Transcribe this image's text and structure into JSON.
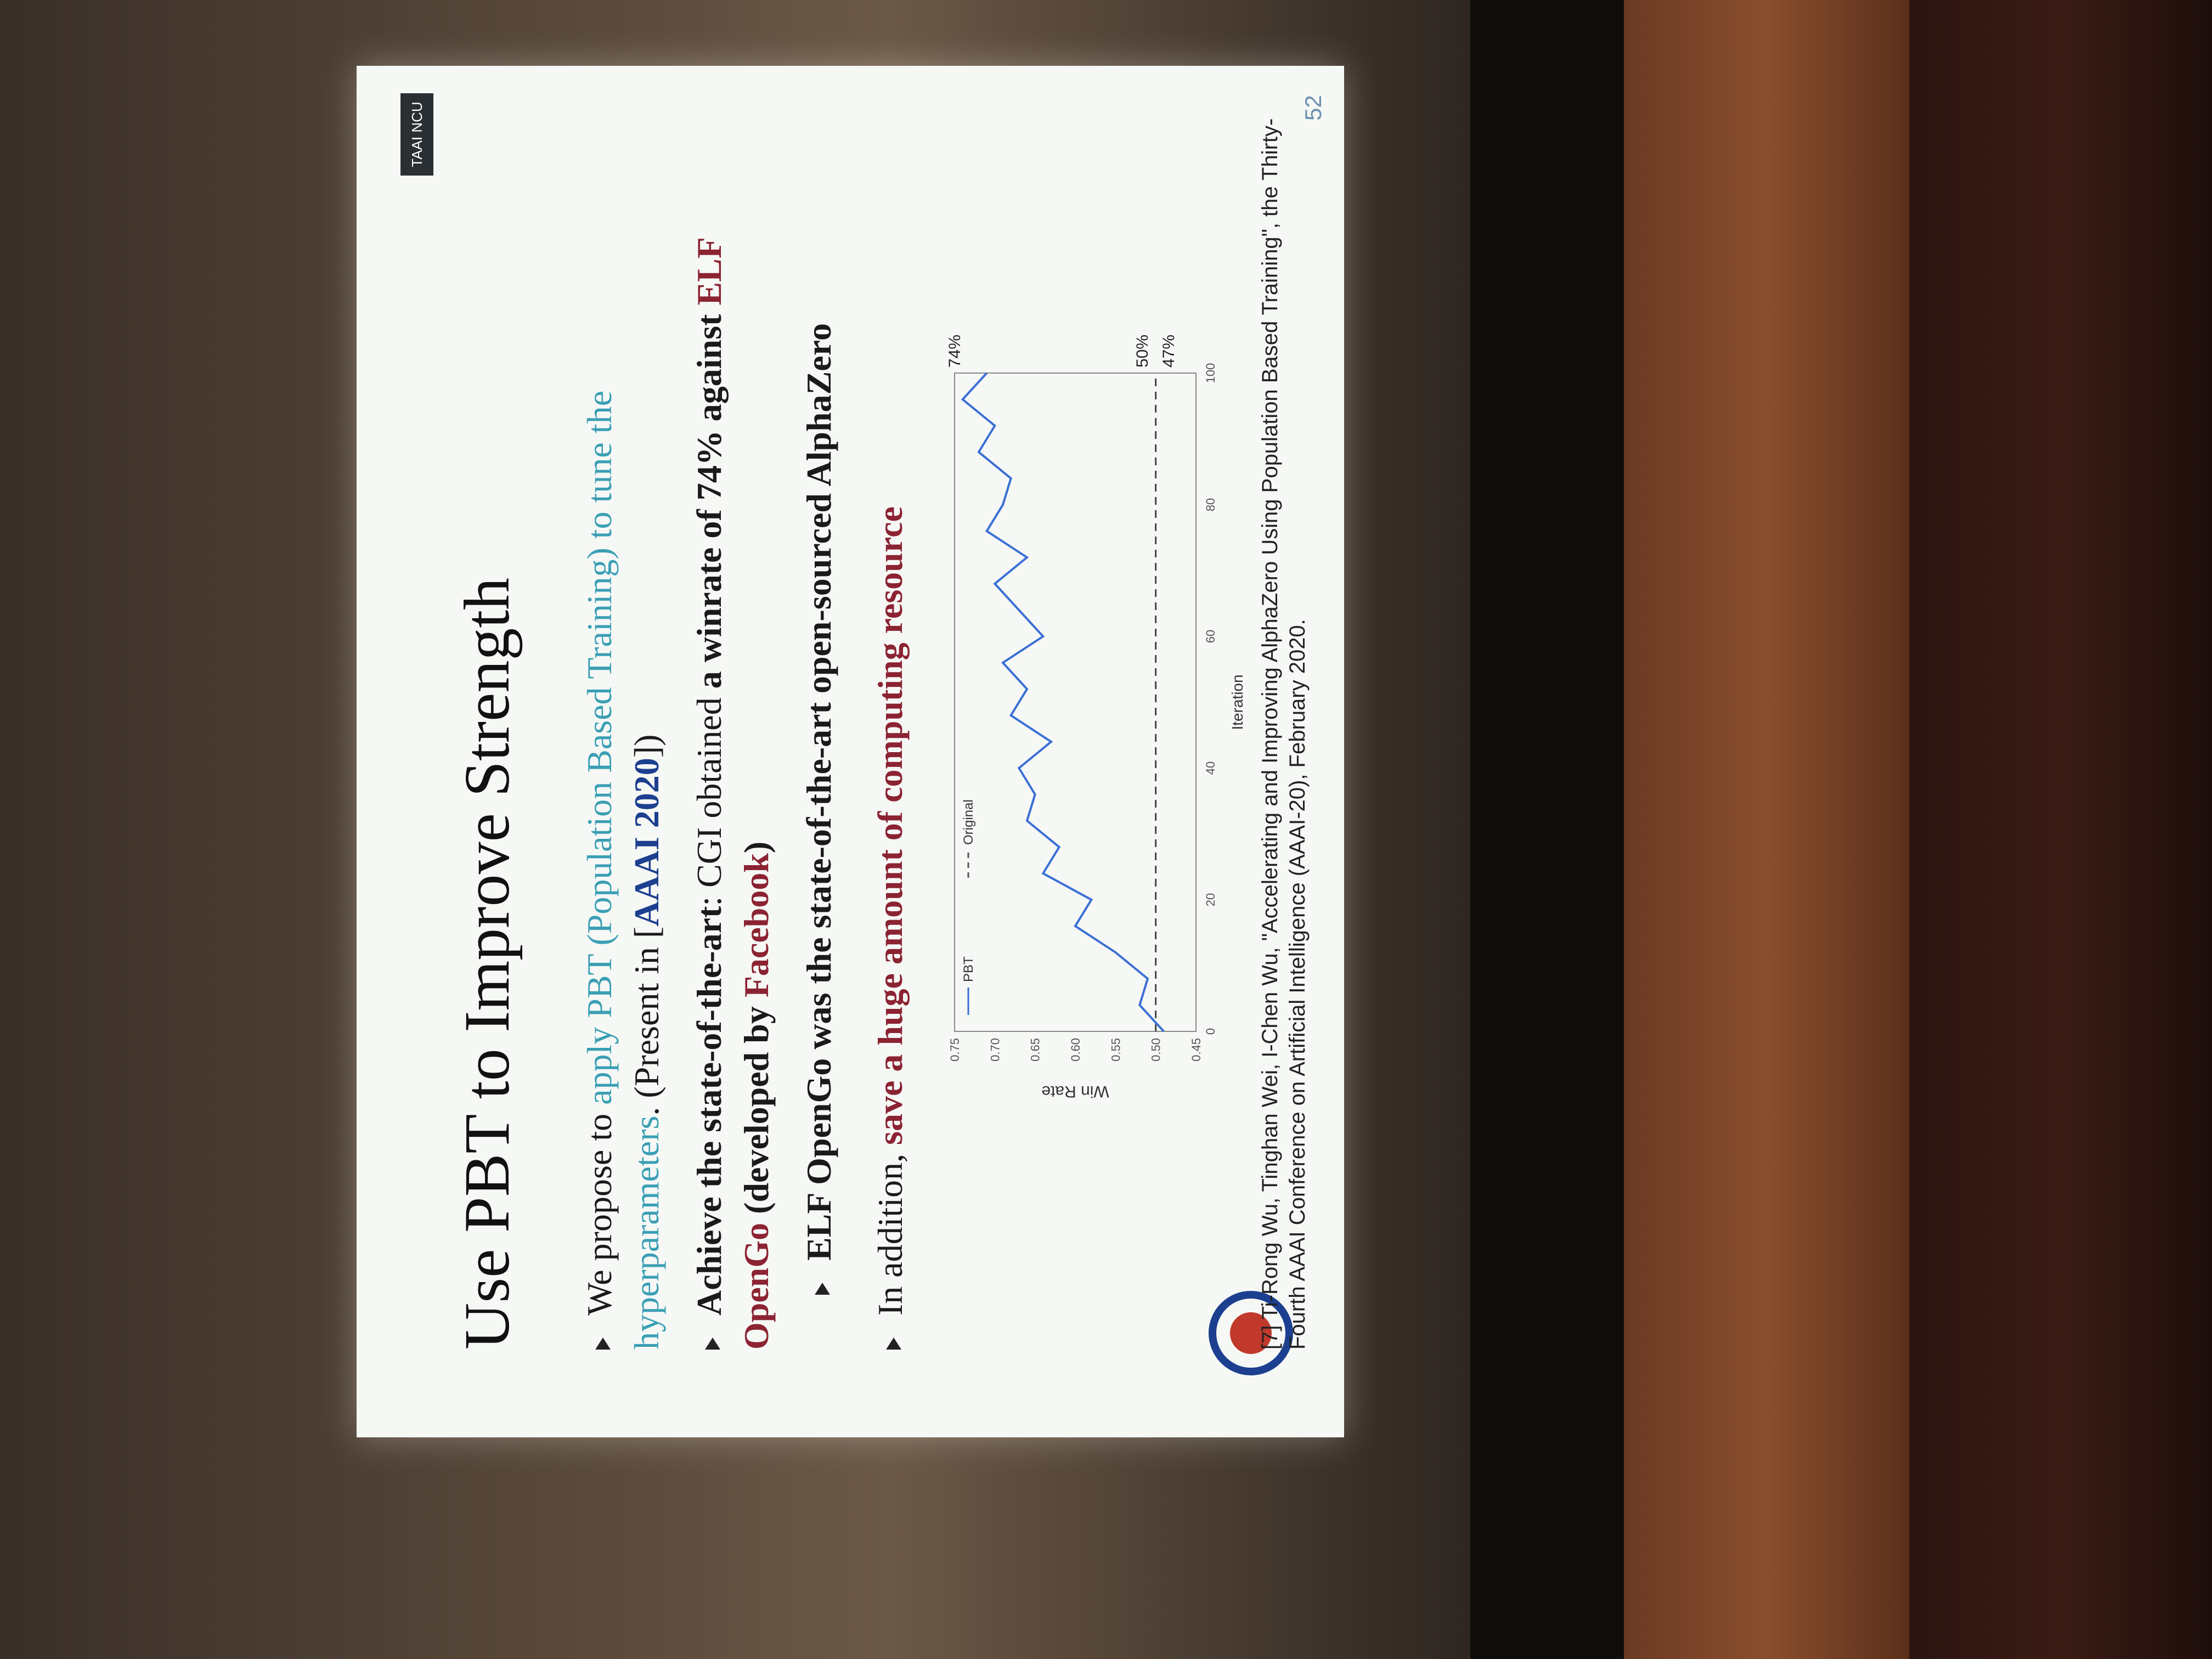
{
  "slide": {
    "title": "Use PBT to Improve Strength",
    "badge": "TAAI NCU",
    "b1_a": "We propose to ",
    "b1_b": "apply PBT (Population Based Training) to tune the hyperparameters",
    "b1_c": ". (Present in [",
    "b1_d": "AAAI 2020",
    "b1_e": "])",
    "b2_a": "Achieve the state-of-the-art",
    "b2_b": ": CGI obtained ",
    "b2_c": "a winrate of 74% against",
    "b2_d": "ELF OpenGo",
    "b2_e": " (developed by ",
    "b2_f": "Facebook",
    "b2_g": ")",
    "b3": "ELF OpenGo was the state-of-the-art open-sourced AlphaZero",
    "b4_a": "In addition, ",
    "b4_b": "save a huge amount of computing resource",
    "reference": "[7] Ti-Rong Wu, Tinghan Wei, I-Chen Wu, \"Accelerating and Improving AlphaZero Using Population Based Training\", the Thirty-Fourth AAAI Conference on Artificial Intelligence (AAAI-20), February 2020.",
    "page_number": "52"
  },
  "chart_data": {
    "type": "line",
    "xlabel": "Iteration",
    "ylabel": "Win Rate",
    "xlim": [
      0,
      100
    ],
    "ylim": [
      0.45,
      0.75
    ],
    "xticks": [
      "0",
      "20",
      "40",
      "60",
      "80",
      "100"
    ],
    "yticks": [
      "0.45",
      "0.50",
      "0.55",
      "0.60",
      "0.65",
      "0.70",
      "0.75"
    ],
    "legend": [
      "PBT",
      "Original"
    ],
    "annotations": [
      "74%",
      "50%",
      "47%"
    ],
    "x": [
      0,
      4,
      8,
      12,
      16,
      20,
      24,
      28,
      32,
      36,
      40,
      44,
      48,
      52,
      56,
      60,
      64,
      68,
      72,
      76,
      80,
      84,
      88,
      92,
      96,
      100
    ],
    "series": [
      {
        "name": "PBT",
        "values": [
          0.49,
          0.52,
          0.51,
          0.55,
          0.6,
          0.58,
          0.64,
          0.62,
          0.66,
          0.65,
          0.67,
          0.63,
          0.68,
          0.66,
          0.69,
          0.64,
          0.67,
          0.7,
          0.66,
          0.71,
          0.69,
          0.68,
          0.72,
          0.7,
          0.74,
          0.71
        ]
      },
      {
        "name": "Original",
        "values": [
          0.5,
          0.5,
          0.5,
          0.5,
          0.5,
          0.5,
          0.5,
          0.5,
          0.5,
          0.5,
          0.5,
          0.5,
          0.5,
          0.5,
          0.5,
          0.5,
          0.5,
          0.5,
          0.5,
          0.5,
          0.5,
          0.5,
          0.5,
          0.5,
          0.5,
          0.5
        ]
      }
    ]
  }
}
